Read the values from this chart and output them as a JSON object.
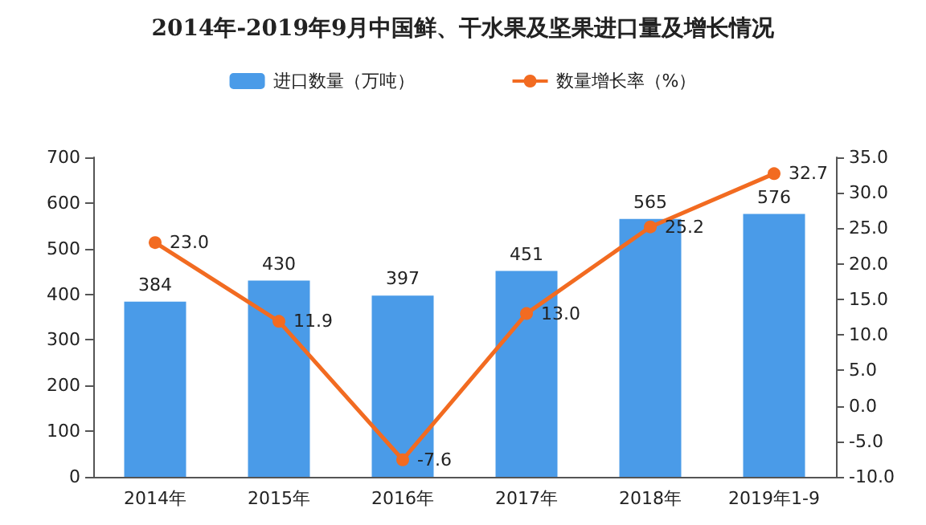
{
  "chart_data": {
    "type": "bar",
    "title": "2014年-2019年9月中国鲜、干水果及坚果进口量及增长情况",
    "categories": [
      "2014年",
      "2015年",
      "2016年",
      "2017年",
      "2018年",
      "2019年1-9"
    ],
    "series": [
      {
        "name": "进口数量（万吨）",
        "color": "#4a9be8",
        "values": [
          384,
          430,
          397,
          451,
          565,
          576
        ],
        "value_labels": [
          "384",
          "430",
          "397",
          "451",
          "565",
          "576"
        ]
      },
      {
        "name": "数量增长率（%）",
        "type": "line",
        "axis": "y2",
        "color": "#f26b21",
        "values": [
          23.0,
          11.9,
          -7.6,
          13.0,
          25.2,
          32.7
        ],
        "value_labels": [
          "23.0",
          "11.9",
          "-7.6",
          "13.0",
          "25.2",
          "32.7"
        ]
      }
    ],
    "ylim": [
      0,
      700
    ],
    "yticks": [
      0,
      100,
      200,
      300,
      400,
      500,
      600,
      700
    ],
    "y2lim": [
      -10,
      35
    ],
    "y2ticks": [
      {
        "value": -10,
        "label": "-10.0"
      },
      {
        "value": -5,
        "label": "-5.0"
      },
      {
        "value": 0,
        "label": "0.0"
      },
      {
        "value": 5,
        "label": "5.0"
      },
      {
        "value": 10,
        "label": "10.0"
      },
      {
        "value": 15,
        "label": "15.0"
      },
      {
        "value": 20,
        "label": "20.0"
      },
      {
        "value": 25,
        "label": "25.0"
      },
      {
        "value": 30,
        "label": "30.0"
      },
      {
        "value": 35,
        "label": "35.0"
      }
    ],
    "legend": "top",
    "grid": false,
    "marker": "circle",
    "line_style": "solid"
  }
}
